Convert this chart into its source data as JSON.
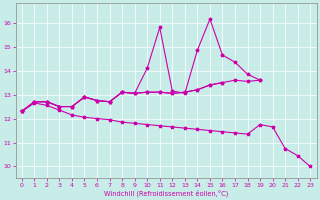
{
  "xlabel": "Windchill (Refroidissement éolien,°C)",
  "bg_color": "#c8ede8",
  "line_color": "#cc00aa",
  "xlim": [
    -0.5,
    23.5
  ],
  "ylim": [
    9.5,
    16.8
  ],
  "xticks": [
    0,
    1,
    2,
    3,
    4,
    5,
    6,
    7,
    8,
    9,
    10,
    11,
    12,
    13,
    14,
    15,
    16,
    17,
    18,
    19,
    20,
    21,
    22,
    23
  ],
  "yticks": [
    10,
    11,
    12,
    13,
    14,
    15,
    16
  ],
  "series": [
    {
      "x": [
        0,
        1,
        2,
        3,
        4,
        5,
        6,
        7,
        8,
        9,
        10,
        11,
        12,
        13,
        14,
        15,
        16,
        17,
        18,
        19
      ],
      "y": [
        12.3,
        12.7,
        12.7,
        12.5,
        12.5,
        12.9,
        12.75,
        12.7,
        13.1,
        13.05,
        13.1,
        13.1,
        13.05,
        13.1,
        13.2,
        13.4,
        13.5,
        13.6,
        13.55,
        13.6
      ]
    },
    {
      "x": [
        0,
        1,
        2,
        3,
        4,
        5,
        6,
        7,
        8,
        9,
        10,
        11,
        12,
        13,
        14,
        15,
        16,
        17,
        18,
        19
      ],
      "y": [
        12.3,
        12.7,
        12.7,
        12.5,
        12.5,
        12.9,
        12.75,
        12.7,
        13.1,
        13.05,
        14.1,
        15.8,
        13.15,
        13.05,
        14.85,
        16.15,
        14.65,
        14.35,
        13.85,
        13.6
      ]
    },
    {
      "x": [
        0,
        1,
        2,
        3,
        4,
        5,
        6,
        7,
        8,
        9,
        10,
        11,
        12,
        13,
        14,
        15,
        16
      ],
      "y": [
        12.3,
        12.7,
        12.7,
        12.5,
        12.5,
        12.9,
        12.75,
        12.7,
        13.1,
        13.05,
        13.1,
        13.1,
        13.05,
        13.1,
        13.2,
        13.4,
        13.5
      ]
    },
    {
      "x": [
        0,
        1,
        2,
        3,
        4,
        5,
        6,
        7,
        8,
        9,
        10,
        11,
        12,
        13,
        14,
        15,
        16,
        17,
        18,
        19,
        20,
        21,
        22,
        23
      ],
      "y": [
        12.3,
        12.65,
        12.55,
        12.35,
        12.15,
        12.05,
        12.0,
        11.95,
        11.85,
        11.8,
        11.75,
        11.7,
        11.65,
        11.6,
        11.55,
        11.5,
        11.45,
        11.4,
        11.35,
        11.75,
        11.65,
        10.75,
        10.45,
        10.0
      ]
    }
  ]
}
